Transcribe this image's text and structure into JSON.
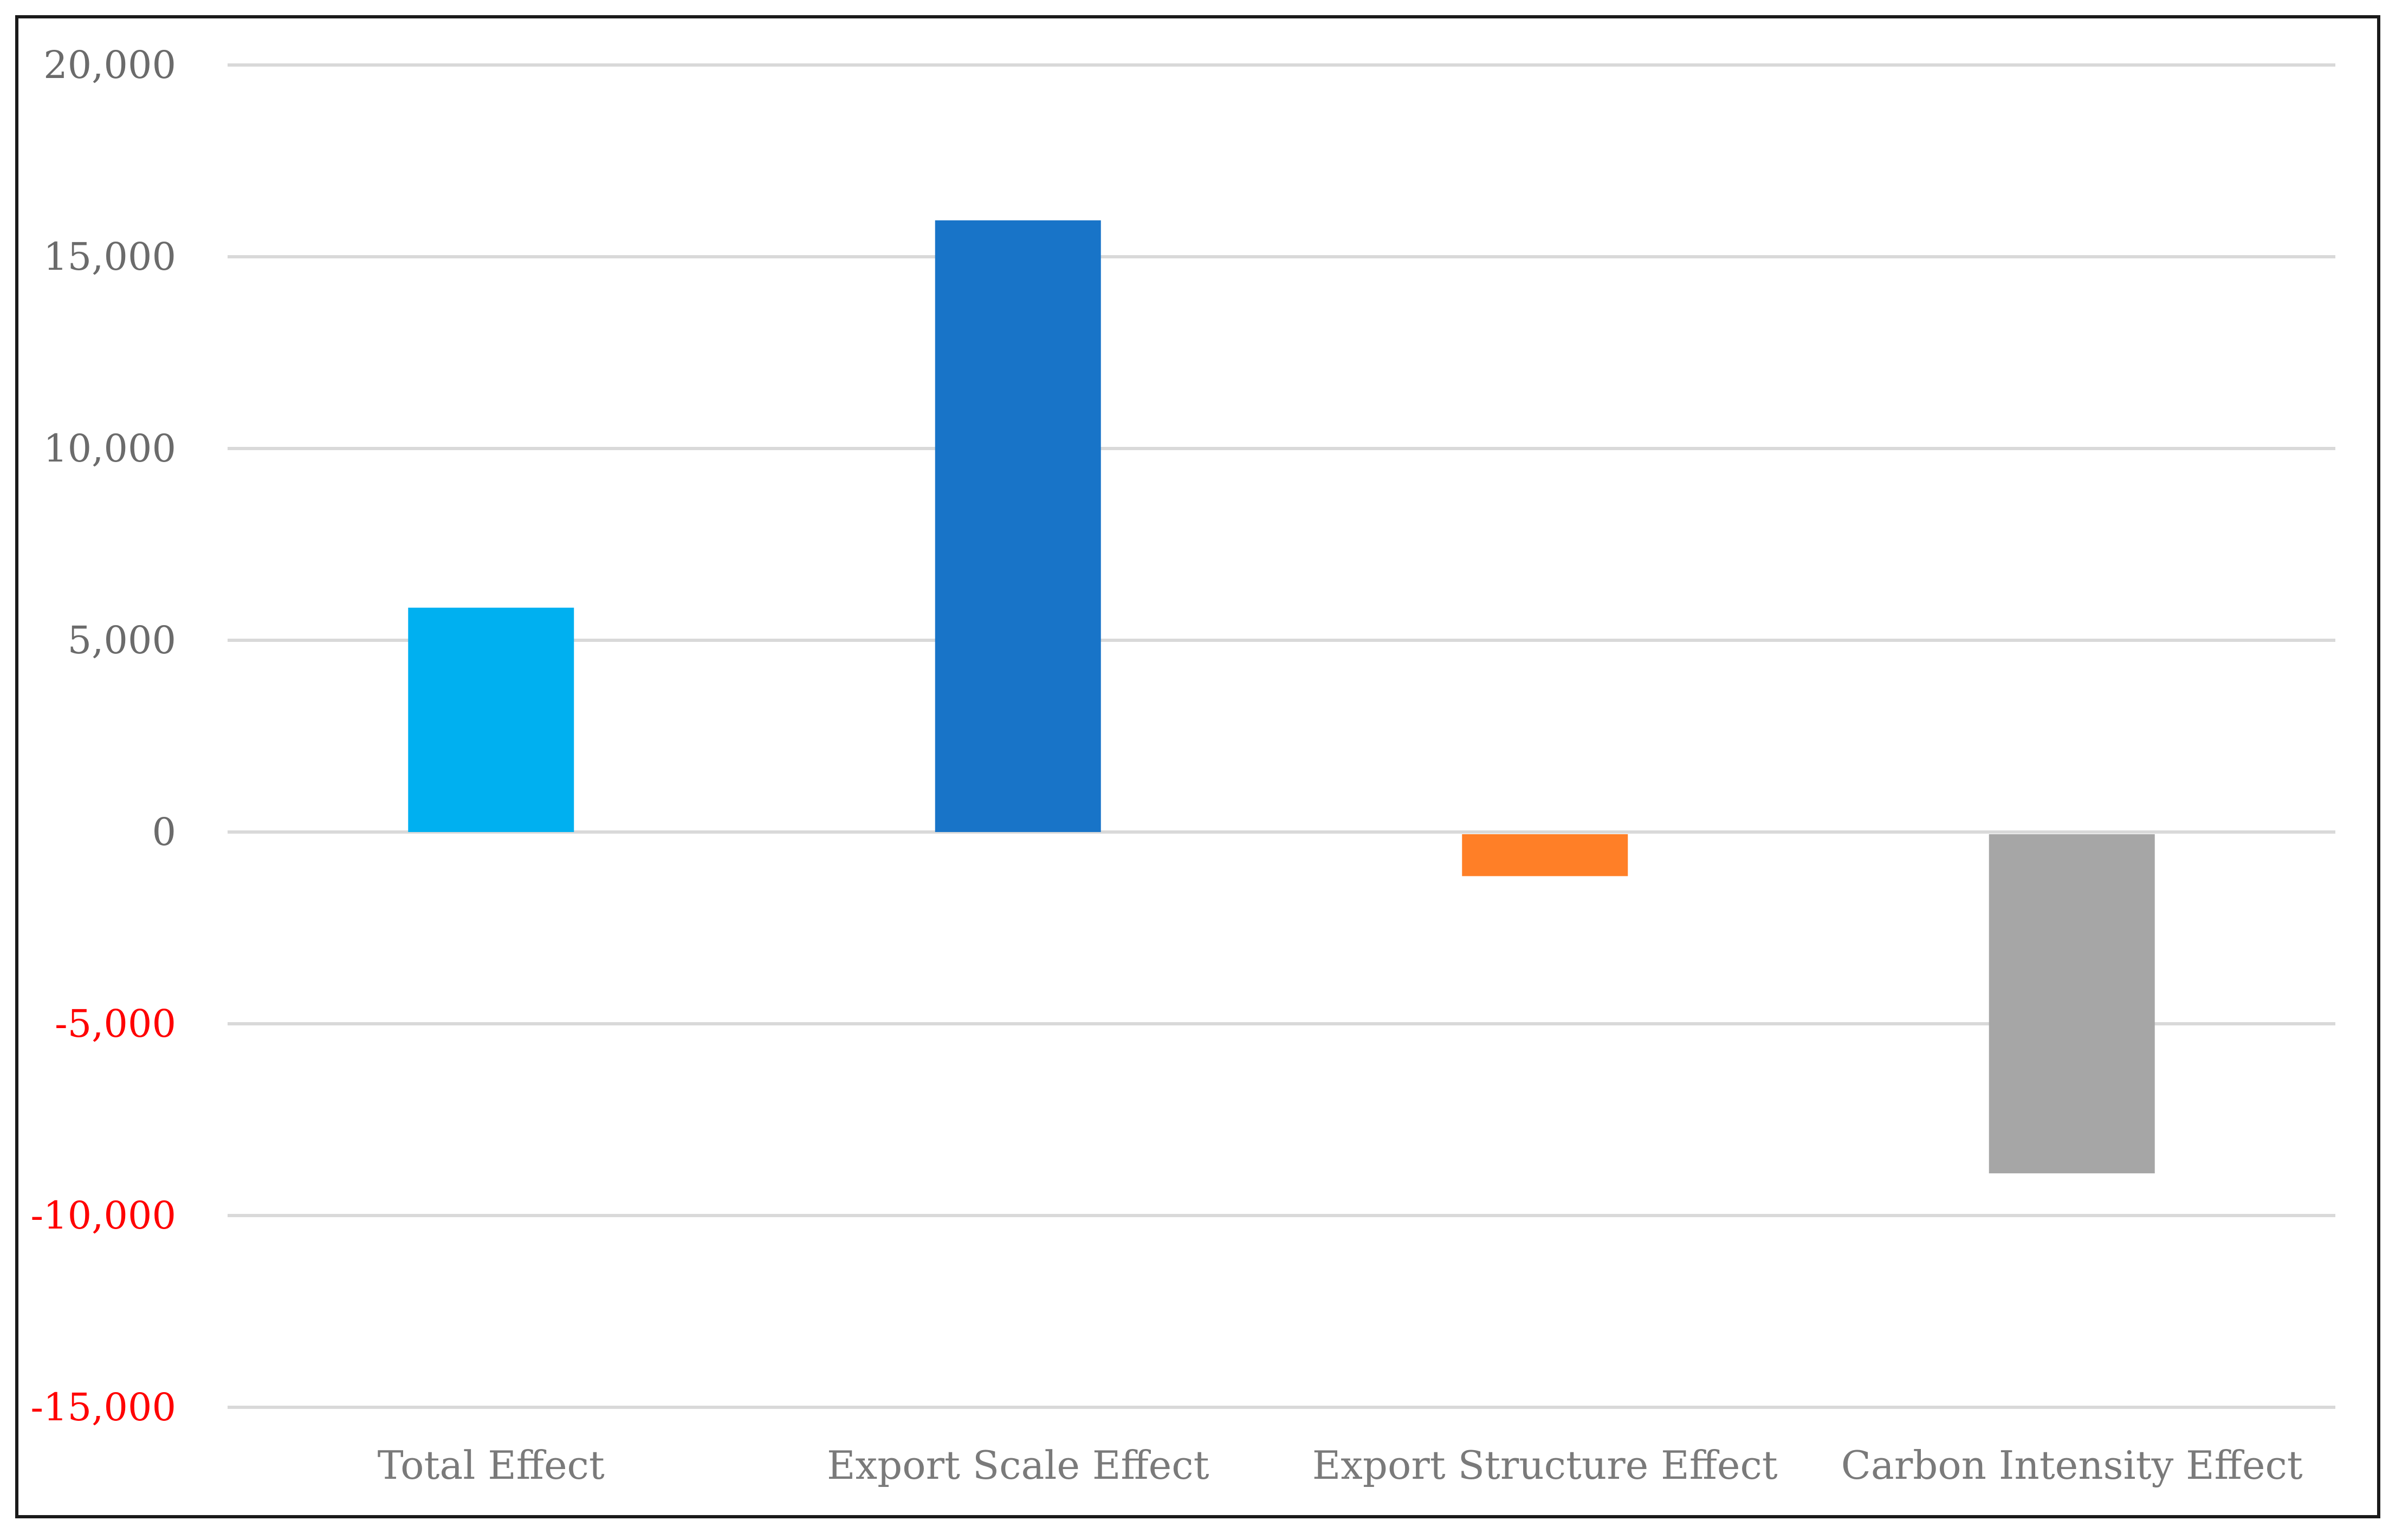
{
  "chart_data": {
    "type": "bar",
    "title": "",
    "xlabel": "",
    "ylabel": "",
    "categories": [
      "Total Effect",
      "Export Scale Effect",
      "Export Structure Effect",
      "Carbon Intensity Effect"
    ],
    "values": [
      5850,
      15950,
      -1150,
      -8900
    ],
    "colors": [
      "#00b0f0",
      "#1874c8",
      "#ff7f27",
      "#a6a6a6"
    ],
    "ylim": [
      -15000,
      20000
    ],
    "yticks": [
      {
        "value": 20000,
        "label": "20,000",
        "color": "#6b6b6b"
      },
      {
        "value": 15000,
        "label": "15,000",
        "color": "#6b6b6b"
      },
      {
        "value": 10000,
        "label": "10,000",
        "color": "#6b6b6b"
      },
      {
        "value": 5000,
        "label": "5,000",
        "color": "#6b6b6b"
      },
      {
        "value": 0,
        "label": "0",
        "color": "#6b6b6b"
      },
      {
        "value": -5000,
        "label": "-5,000",
        "color": "#ff0000"
      },
      {
        "value": -10000,
        "label": "-10,000",
        "color": "#ff0000"
      },
      {
        "value": -15000,
        "label": "-15,000",
        "color": "#ff0000"
      }
    ],
    "grid": true,
    "legend": "none"
  }
}
